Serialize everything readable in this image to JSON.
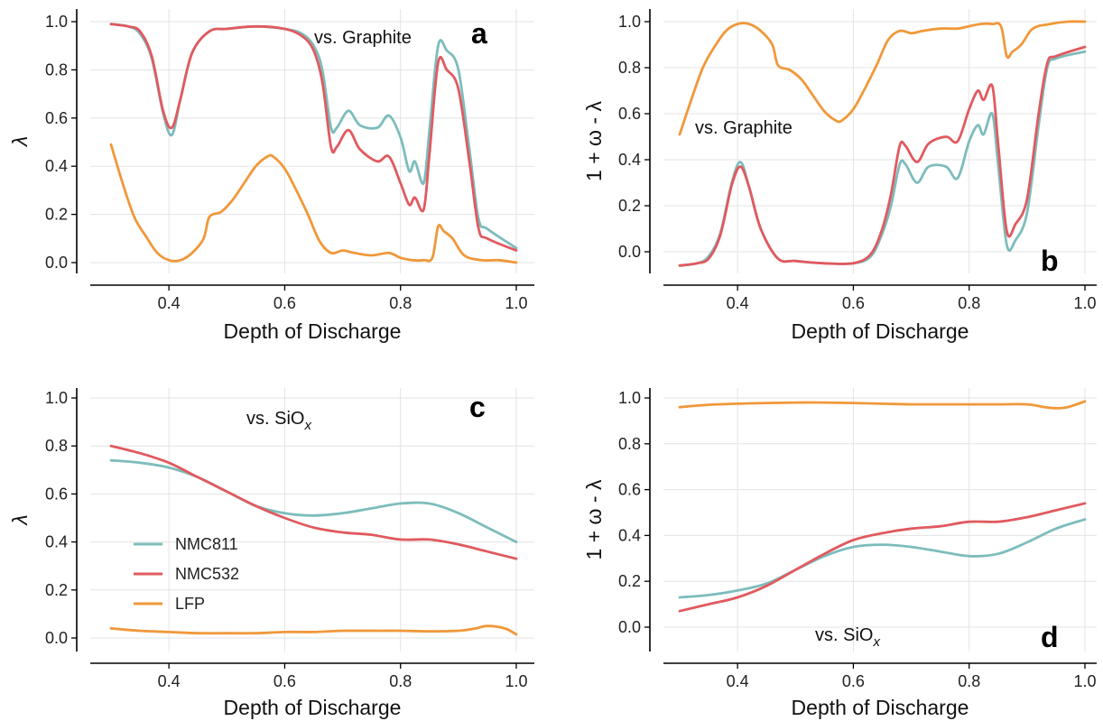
{
  "colors": {
    "NMC811": "#7dbcbc",
    "NMC532": "#e05a5f",
    "LFP": "#f0983a"
  },
  "legend": {
    "items": [
      "NMC811",
      "NMC532",
      "LFP"
    ]
  },
  "chart_data": [
    {
      "type": "line",
      "panel": "a",
      "annotation": "vs. Graphite",
      "xlabel": "Depth of Discharge",
      "ylabel": "λ",
      "xlim": [
        0.3,
        1.0
      ],
      "ylim": [
        0.0,
        1.0
      ],
      "xticks": [
        "0.4",
        "0.6",
        "0.8",
        "1.0"
      ],
      "yticks": [
        "0.0",
        "0.2",
        "0.4",
        "0.6",
        "0.8",
        "1.0"
      ],
      "grid": true,
      "series": [
        {
          "name": "NMC811",
          "x": [
            0.3,
            0.33,
            0.35,
            0.37,
            0.39,
            0.405,
            0.42,
            0.44,
            0.47,
            0.5,
            0.55,
            0.6,
            0.63,
            0.65,
            0.665,
            0.68,
            0.69,
            0.71,
            0.73,
            0.76,
            0.78,
            0.8,
            0.815,
            0.825,
            0.84,
            0.85,
            0.865,
            0.88,
            0.9,
            0.92,
            0.935,
            0.95,
            1.0
          ],
          "y": [
            0.99,
            0.98,
            0.95,
            0.85,
            0.62,
            0.53,
            0.68,
            0.87,
            0.96,
            0.97,
            0.98,
            0.97,
            0.95,
            0.9,
            0.8,
            0.56,
            0.56,
            0.63,
            0.57,
            0.56,
            0.61,
            0.52,
            0.38,
            0.42,
            0.33,
            0.55,
            0.9,
            0.88,
            0.8,
            0.45,
            0.18,
            0.14,
            0.06
          ]
        },
        {
          "name": "NMC532",
          "x": [
            0.3,
            0.33,
            0.35,
            0.37,
            0.39,
            0.405,
            0.42,
            0.44,
            0.47,
            0.5,
            0.55,
            0.6,
            0.63,
            0.65,
            0.665,
            0.68,
            0.69,
            0.71,
            0.73,
            0.76,
            0.78,
            0.8,
            0.815,
            0.825,
            0.84,
            0.85,
            0.865,
            0.88,
            0.9,
            0.92,
            0.935,
            0.95,
            1.0
          ],
          "y": [
            0.99,
            0.98,
            0.96,
            0.86,
            0.63,
            0.56,
            0.68,
            0.87,
            0.96,
            0.97,
            0.98,
            0.97,
            0.94,
            0.88,
            0.75,
            0.48,
            0.48,
            0.55,
            0.47,
            0.42,
            0.44,
            0.33,
            0.24,
            0.27,
            0.22,
            0.45,
            0.83,
            0.8,
            0.72,
            0.4,
            0.14,
            0.1,
            0.05
          ]
        },
        {
          "name": "LFP",
          "x": [
            0.3,
            0.32,
            0.34,
            0.36,
            0.38,
            0.4,
            0.42,
            0.44,
            0.46,
            0.47,
            0.49,
            0.51,
            0.53,
            0.55,
            0.57,
            0.58,
            0.6,
            0.62,
            0.64,
            0.66,
            0.68,
            0.7,
            0.72,
            0.75,
            0.78,
            0.8,
            0.82,
            0.84,
            0.855,
            0.865,
            0.875,
            0.89,
            0.91,
            0.94,
            0.97,
            1.0
          ],
          "y": [
            0.49,
            0.33,
            0.19,
            0.11,
            0.04,
            0.01,
            0.01,
            0.04,
            0.1,
            0.19,
            0.21,
            0.26,
            0.33,
            0.4,
            0.44,
            0.44,
            0.39,
            0.3,
            0.2,
            0.09,
            0.04,
            0.05,
            0.04,
            0.03,
            0.04,
            0.02,
            0.01,
            0.01,
            0.02,
            0.15,
            0.13,
            0.1,
            0.03,
            0.01,
            0.01,
            0.0
          ]
        }
      ]
    },
    {
      "type": "line",
      "panel": "b",
      "annotation": "vs. Graphite",
      "xlabel": "Depth of Discharge",
      "ylabel": "1 + ω - λ",
      "xlim": [
        0.3,
        1.0
      ],
      "ylim": [
        -0.1,
        1.0
      ],
      "xticks": [
        "0.4",
        "0.6",
        "0.8",
        "1.0"
      ],
      "yticks": [
        "0.0",
        "0.2",
        "0.4",
        "0.6",
        "0.8",
        "1.0"
      ],
      "grid": true,
      "series": [
        {
          "name": "NMC811",
          "x": [
            0.3,
            0.33,
            0.35,
            0.37,
            0.39,
            0.405,
            0.42,
            0.44,
            0.47,
            0.5,
            0.55,
            0.6,
            0.63,
            0.65,
            0.665,
            0.68,
            0.69,
            0.71,
            0.73,
            0.76,
            0.78,
            0.8,
            0.815,
            0.825,
            0.84,
            0.85,
            0.865,
            0.88,
            0.9,
            0.92,
            0.935,
            0.95,
            1.0
          ],
          "y": [
            -0.06,
            -0.05,
            -0.02,
            0.08,
            0.3,
            0.39,
            0.28,
            0.1,
            -0.03,
            -0.04,
            -0.05,
            -0.05,
            -0.02,
            0.08,
            0.2,
            0.38,
            0.38,
            0.3,
            0.37,
            0.37,
            0.32,
            0.48,
            0.55,
            0.51,
            0.6,
            0.38,
            0.03,
            0.05,
            0.17,
            0.55,
            0.8,
            0.84,
            0.87
          ]
        },
        {
          "name": "NMC532",
          "x": [
            0.3,
            0.33,
            0.35,
            0.37,
            0.39,
            0.405,
            0.42,
            0.44,
            0.47,
            0.5,
            0.55,
            0.6,
            0.63,
            0.65,
            0.665,
            0.68,
            0.69,
            0.71,
            0.73,
            0.76,
            0.78,
            0.8,
            0.815,
            0.825,
            0.84,
            0.85,
            0.865,
            0.88,
            0.9,
            0.92,
            0.935,
            0.95,
            1.0
          ],
          "y": [
            -0.06,
            -0.05,
            -0.03,
            0.07,
            0.29,
            0.37,
            0.28,
            0.1,
            -0.03,
            -0.04,
            -0.05,
            -0.05,
            -0.01,
            0.1,
            0.25,
            0.46,
            0.46,
            0.39,
            0.47,
            0.5,
            0.48,
            0.62,
            0.7,
            0.66,
            0.72,
            0.47,
            0.09,
            0.12,
            0.23,
            0.6,
            0.82,
            0.85,
            0.89
          ]
        },
        {
          "name": "LFP",
          "x": [
            0.3,
            0.32,
            0.34,
            0.36,
            0.38,
            0.4,
            0.42,
            0.44,
            0.46,
            0.47,
            0.49,
            0.51,
            0.53,
            0.55,
            0.57,
            0.58,
            0.6,
            0.62,
            0.64,
            0.66,
            0.68,
            0.7,
            0.72,
            0.75,
            0.78,
            0.8,
            0.82,
            0.84,
            0.855,
            0.865,
            0.875,
            0.89,
            0.91,
            0.94,
            0.97,
            1.0
          ],
          "y": [
            0.51,
            0.66,
            0.8,
            0.89,
            0.96,
            0.99,
            0.99,
            0.96,
            0.9,
            0.81,
            0.79,
            0.75,
            0.68,
            0.61,
            0.57,
            0.57,
            0.62,
            0.71,
            0.81,
            0.92,
            0.96,
            0.95,
            0.96,
            0.97,
            0.97,
            0.98,
            0.99,
            0.99,
            0.98,
            0.85,
            0.87,
            0.9,
            0.97,
            0.99,
            1.0,
            1.0
          ]
        }
      ]
    },
    {
      "type": "line",
      "panel": "c",
      "annotation": "vs. SiO",
      "annotation_sub": "x",
      "xlabel": "Depth of Discharge",
      "ylabel": "λ",
      "xlim": [
        0.3,
        1.0
      ],
      "ylim": [
        0.0,
        1.0
      ],
      "xticks": [
        "0.4",
        "0.6",
        "0.8",
        "1.0"
      ],
      "yticks": [
        "0.0",
        "0.2",
        "0.4",
        "0.6",
        "0.8",
        "1.0"
      ],
      "grid": true,
      "legend": "lower-left",
      "series": [
        {
          "name": "NMC811",
          "x": [
            0.3,
            0.35,
            0.4,
            0.45,
            0.5,
            0.55,
            0.6,
            0.65,
            0.7,
            0.75,
            0.8,
            0.85,
            0.9,
            0.95,
            1.0
          ],
          "y": [
            0.74,
            0.73,
            0.71,
            0.67,
            0.61,
            0.55,
            0.52,
            0.51,
            0.52,
            0.54,
            0.56,
            0.56,
            0.52,
            0.46,
            0.4
          ]
        },
        {
          "name": "NMC532",
          "x": [
            0.3,
            0.35,
            0.4,
            0.45,
            0.5,
            0.55,
            0.6,
            0.65,
            0.7,
            0.75,
            0.8,
            0.85,
            0.9,
            0.95,
            1.0
          ],
          "y": [
            0.8,
            0.77,
            0.73,
            0.67,
            0.61,
            0.55,
            0.5,
            0.46,
            0.44,
            0.43,
            0.41,
            0.41,
            0.39,
            0.36,
            0.33
          ]
        },
        {
          "name": "LFP",
          "x": [
            0.3,
            0.35,
            0.4,
            0.45,
            0.5,
            0.55,
            0.6,
            0.65,
            0.7,
            0.75,
            0.8,
            0.85,
            0.9,
            0.93,
            0.95,
            0.98,
            1.0
          ],
          "y": [
            0.04,
            0.03,
            0.025,
            0.02,
            0.02,
            0.02,
            0.025,
            0.025,
            0.03,
            0.03,
            0.03,
            0.028,
            0.03,
            0.04,
            0.05,
            0.04,
            0.015
          ]
        }
      ]
    },
    {
      "type": "line",
      "panel": "d",
      "annotation": "vs. SiO",
      "annotation_sub": "x",
      "xlabel": "Depth of Discharge",
      "ylabel": "1 + ω - λ",
      "xlim": [
        0.3,
        1.0
      ],
      "ylim": [
        -0.1,
        1.0
      ],
      "xticks": [
        "0.4",
        "0.6",
        "0.8",
        "1.0"
      ],
      "yticks": [
        "0.0",
        "0.2",
        "0.4",
        "0.6",
        "0.8",
        "1.0"
      ],
      "grid": true,
      "series": [
        {
          "name": "NMC811",
          "x": [
            0.3,
            0.35,
            0.4,
            0.45,
            0.5,
            0.55,
            0.6,
            0.65,
            0.7,
            0.75,
            0.8,
            0.85,
            0.9,
            0.95,
            1.0
          ],
          "y": [
            0.13,
            0.14,
            0.16,
            0.19,
            0.25,
            0.31,
            0.35,
            0.36,
            0.35,
            0.33,
            0.31,
            0.32,
            0.37,
            0.43,
            0.47
          ]
        },
        {
          "name": "NMC532",
          "x": [
            0.3,
            0.35,
            0.4,
            0.45,
            0.5,
            0.55,
            0.6,
            0.65,
            0.7,
            0.75,
            0.8,
            0.85,
            0.9,
            0.95,
            1.0
          ],
          "y": [
            0.07,
            0.1,
            0.13,
            0.18,
            0.25,
            0.32,
            0.38,
            0.41,
            0.43,
            0.44,
            0.46,
            0.46,
            0.48,
            0.51,
            0.54
          ]
        },
        {
          "name": "LFP",
          "x": [
            0.3,
            0.35,
            0.4,
            0.45,
            0.5,
            0.55,
            0.6,
            0.65,
            0.7,
            0.75,
            0.8,
            0.85,
            0.9,
            0.93,
            0.95,
            0.97,
            1.0
          ],
          "y": [
            0.96,
            0.97,
            0.975,
            0.978,
            0.98,
            0.98,
            0.978,
            0.975,
            0.972,
            0.972,
            0.972,
            0.972,
            0.972,
            0.96,
            0.955,
            0.96,
            0.985
          ]
        }
      ]
    }
  ]
}
